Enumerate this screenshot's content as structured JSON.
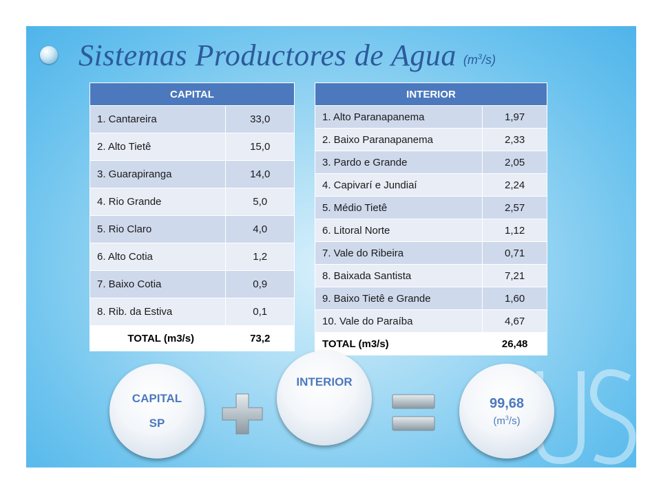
{
  "title": {
    "text": "Sistemas Productores de Agua",
    "unit_prefix": "(m",
    "unit_sup": "3",
    "unit_suffix": "/s)"
  },
  "capital_table": {
    "header": "CAPITAL",
    "rows": [
      {
        "name": "1. Cantareira",
        "value": "33,0"
      },
      {
        "name": "2. Alto Tietê",
        "value": "15,0"
      },
      {
        "name": "3. Guarapiranga",
        "value": "14,0"
      },
      {
        "name": "4. Rio Grande",
        "value": "5,0"
      },
      {
        "name": "5. Rio Claro",
        "value": "4,0"
      },
      {
        "name": "6. Alto Cotia",
        "value": "1,2"
      },
      {
        "name": "7. Baixo Cotia",
        "value": "0,9"
      },
      {
        "name": "8. Rib. da Estiva",
        "value": "0,1"
      }
    ],
    "total": {
      "label": "TOTAL (m3/s)",
      "value": "73,2"
    }
  },
  "interior_table": {
    "header": "INTERIOR",
    "rows": [
      {
        "name": "1. Alto Paranapanema",
        "value": "1,97"
      },
      {
        "name": "2. Baixo Paranapanema",
        "value": "2,33"
      },
      {
        "name": "3. Pardo e Grande",
        "value": "2,05"
      },
      {
        "name": "4. Capivarí e Jundiaí",
        "value": "2,24"
      },
      {
        "name": "5. Médio Tietê",
        "value": "2,57"
      },
      {
        "name": "6. Litoral Norte",
        "value": "1,12"
      },
      {
        "name": "7. Vale do Ribeira",
        "value": "0,71"
      },
      {
        "name": "8. Baixada Santista",
        "value": "7,21"
      },
      {
        "name": "9. Baixo Tietê e Grande",
        "value": "1,60"
      },
      {
        "name": "10. Vale do Paraíba",
        "value": "4,67"
      }
    ],
    "total": {
      "label": "TOTAL (m3/s)",
      "value": "26,48"
    }
  },
  "circles": {
    "capital_line1": "CAPITAL",
    "capital_line2": "SP",
    "interior": "INTERIOR",
    "total_value": "99,68",
    "total_unit_prefix": "(m",
    "total_unit_sup": "3",
    "total_unit_suffix": "/s)"
  },
  "colors": {
    "header_blue": "#4c79bd",
    "row_odd": "#cfd9ec",
    "row_even": "#e8edf6",
    "title_blue": "#2c5a9c",
    "background_blue": "#6cc3ee"
  },
  "icons": [
    "title-bullet-icon",
    "plus-icon",
    "equals-icon",
    "logo-watermark-icon"
  ]
}
